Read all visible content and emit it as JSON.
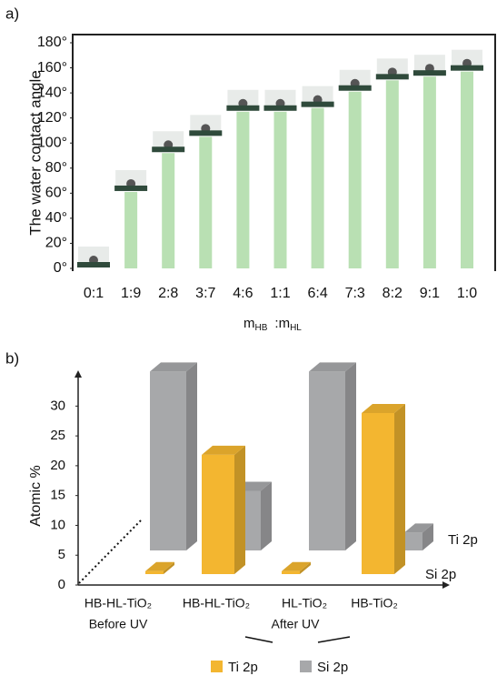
{
  "chart_data": [
    {
      "type": "bar",
      "panel_label": "a)",
      "ylabel": "The water contact angle",
      "x_label": [
        "m",
        "HB",
        ":m",
        "HL"
      ],
      "categories": [
        "0:1",
        "1:9",
        "2:8",
        "3:7",
        "4:6",
        "1:1",
        "6:4",
        "7:3",
        "8:2",
        "9:1",
        "1:0"
      ],
      "values": [
        0,
        61,
        92,
        105,
        125,
        125,
        128,
        141,
        150,
        153,
        157
      ],
      "color": "#b9e0b3",
      "ylim": [
        0,
        180
      ],
      "yticks": [
        {
          "value": 0,
          "label": "0°"
        },
        {
          "value": 20,
          "label": "20°"
        },
        {
          "value": 40,
          "label": "40°"
        },
        {
          "value": 60,
          "label": "60°"
        },
        {
          "value": 80,
          "label": "80°"
        },
        {
          "value": 100,
          "label": "100°"
        },
        {
          "value": 120,
          "label": "120°"
        },
        {
          "value": 140,
          "label": "140°"
        },
        {
          "value": 160,
          "label": "160°"
        },
        {
          "value": 180,
          "label": "180°"
        }
      ]
    },
    {
      "type": "bar3d",
      "panel_label": "b)",
      "ylabel": "Atomic %",
      "categories": [
        "HB-HL-TiO₂",
        "HB-HL-TiO₂",
        "HL-TiO₂",
        "HB-TiO₂"
      ],
      "group_labels": [
        "Before UV",
        "After UV"
      ],
      "row_labels": [
        "Ti 2p",
        "Si 2p"
      ],
      "series": [
        {
          "name": "Ti 2p",
          "color": "#f3b630",
          "values": [
            0.5,
            20,
            0.5,
            27
          ]
        },
        {
          "name": "Si 2p",
          "color": "#a7a8aa",
          "values": [
            30,
            10,
            30,
            3
          ]
        }
      ],
      "ylim": [
        0,
        36
      ],
      "yticks": [
        0,
        5,
        10,
        15,
        20,
        25,
        30
      ]
    }
  ]
}
